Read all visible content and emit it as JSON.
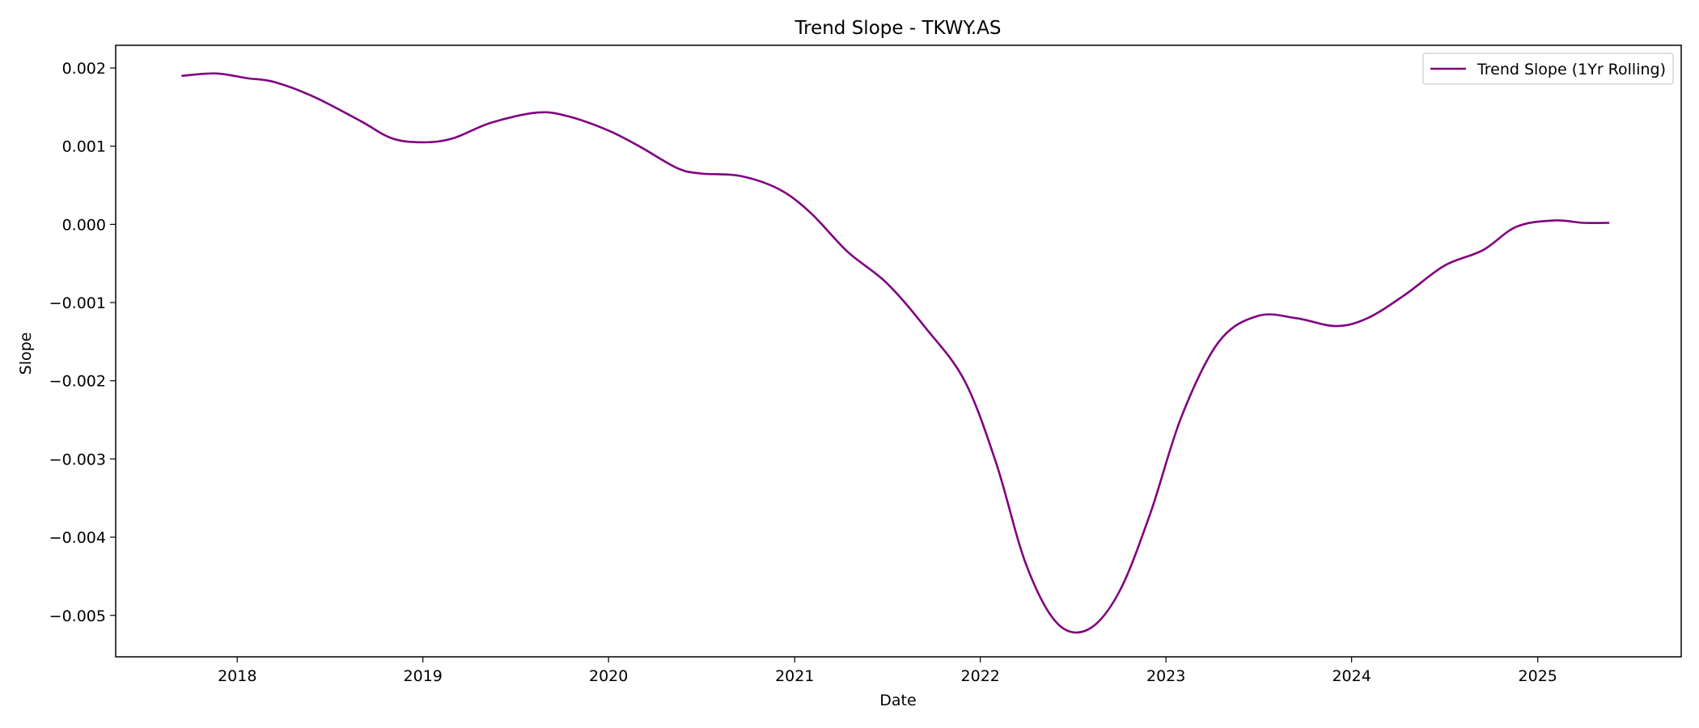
{
  "chart_data": {
    "type": "line",
    "title": "Trend Slope - TKWY.AS",
    "xlabel": "Date",
    "ylabel": "Slope",
    "x_ticks": [
      "2018",
      "2019",
      "2020",
      "2021",
      "2022",
      "2023",
      "2024",
      "2025"
    ],
    "y_ticks": [
      "0.002",
      "0.001",
      "0.000",
      "−0.001",
      "−0.002",
      "−0.003",
      "−0.004",
      "−0.005"
    ],
    "xlim": [
      "2017-05-07",
      "2025-10-10"
    ],
    "ylim": [
      -0.00553,
      0.00229
    ],
    "grid": false,
    "legend_position": "top-right",
    "series": [
      {
        "name": "Trend Slope (1Yr Rolling)",
        "color": "#800080",
        "points": [
          [
            "2017-09-15",
            0.0019
          ],
          [
            "2017-11-20",
            0.00193
          ],
          [
            "2018-01-20",
            0.00187
          ],
          [
            "2018-03-15",
            0.00182
          ],
          [
            "2018-06-01",
            0.00163
          ],
          [
            "2018-09-01",
            0.00132
          ],
          [
            "2018-11-01",
            0.0011
          ],
          [
            "2019-01-01",
            0.00105
          ],
          [
            "2019-03-01",
            0.0011
          ],
          [
            "2019-05-15",
            0.0013
          ],
          [
            "2019-08-15",
            0.00143
          ],
          [
            "2019-10-15",
            0.00138
          ],
          [
            "2020-01-01",
            0.0012
          ],
          [
            "2020-03-01",
            0.001
          ],
          [
            "2020-05-15",
            0.00072
          ],
          [
            "2020-07-01",
            0.00065
          ],
          [
            "2020-09-15",
            0.00062
          ],
          [
            "2020-12-01",
            0.00045
          ],
          [
            "2021-02-01",
            0.00015
          ],
          [
            "2021-04-15",
            -0.00035
          ],
          [
            "2021-07-01",
            -0.00075
          ],
          [
            "2021-09-15",
            -0.00132
          ],
          [
            "2021-12-01",
            -0.002
          ],
          [
            "2022-02-01",
            -0.00305
          ],
          [
            "2022-04-01",
            -0.00435
          ],
          [
            "2022-06-01",
            -0.0051
          ],
          [
            "2022-08-01",
            -0.00518
          ],
          [
            "2022-10-01",
            -0.0047
          ],
          [
            "2022-12-01",
            -0.0037
          ],
          [
            "2023-02-01",
            -0.00245
          ],
          [
            "2023-04-15",
            -0.0015
          ],
          [
            "2023-07-01",
            -0.00117
          ],
          [
            "2023-09-15",
            -0.0012
          ],
          [
            "2023-12-01",
            -0.0013
          ],
          [
            "2024-02-01",
            -0.0012
          ],
          [
            "2024-04-15",
            -0.0009
          ],
          [
            "2024-07-01",
            -0.00053
          ],
          [
            "2024-09-15",
            -0.00033
          ],
          [
            "2024-11-20",
            -3e-05
          ],
          [
            "2025-02-01",
            5e-05
          ],
          [
            "2025-04-01",
            2e-05
          ],
          [
            "2025-05-20",
            2e-05
          ]
        ]
      }
    ]
  }
}
